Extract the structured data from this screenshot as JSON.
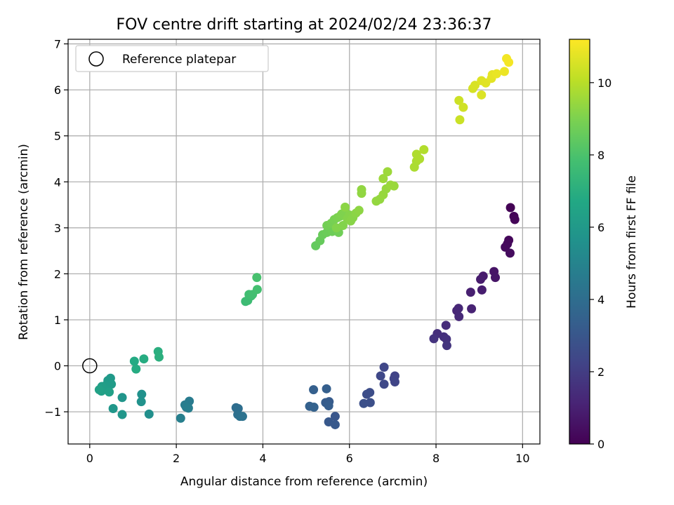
{
  "chart_data": {
    "type": "scatter",
    "title": "FOV centre drift starting at 2024/02/24 23:36:37",
    "xlabel": "Angular distance from reference (arcmin)",
    "ylabel": "Rotation from reference (arcmin)",
    "xlim": [
      -0.5,
      10.4
    ],
    "ylim": [
      -1.7,
      7.1
    ],
    "xticks": [
      0,
      2,
      4,
      6,
      8,
      10
    ],
    "xtick_labels": [
      "0",
      "2",
      "4",
      "6",
      "8",
      "10"
    ],
    "yticks": [
      -1,
      0,
      1,
      2,
      3,
      4,
      5,
      6,
      7
    ],
    "ytick_labels": [
      "−1",
      "0",
      "1",
      "2",
      "3",
      "4",
      "5",
      "6",
      "7"
    ],
    "grid": true,
    "legend": {
      "placement": "top-left",
      "entries": [
        "Reference platepar"
      ]
    },
    "reference_point": {
      "x": 0,
      "y": 0,
      "marker": "open-circle"
    },
    "colorbar": {
      "label": "Hours from first FF file",
      "colormap": "viridis",
      "range": [
        0,
        11.2
      ],
      "ticks": [
        0,
        2,
        4,
        6,
        8,
        10
      ],
      "tick_labels": [
        "0",
        "2",
        "4",
        "6",
        "8",
        "10"
      ]
    },
    "series": [
      {
        "points": [
          [
            9.72,
            3.44,
            0.05
          ],
          [
            9.8,
            3.25,
            0.1
          ],
          [
            9.82,
            3.18,
            0.15
          ],
          [
            9.68,
            2.73,
            0.2
          ],
          [
            9.65,
            2.65,
            0.25
          ],
          [
            9.6,
            2.58,
            0.3
          ],
          [
            9.71,
            2.45,
            0.35
          ],
          [
            9.34,
            2.05,
            0.6
          ],
          [
            9.37,
            1.92,
            0.65
          ],
          [
            9.09,
            1.95,
            0.8
          ],
          [
            9.03,
            1.88,
            0.85
          ],
          [
            9.06,
            1.65,
            0.9
          ],
          [
            8.8,
            1.6,
            1.0
          ],
          [
            8.82,
            1.24,
            1.1
          ],
          [
            8.48,
            1.2,
            1.2
          ],
          [
            8.52,
            1.25,
            1.25
          ],
          [
            8.53,
            1.07,
            1.3
          ],
          [
            8.23,
            0.88,
            1.4
          ],
          [
            8.03,
            0.7,
            1.5
          ],
          [
            8.18,
            0.63,
            1.55
          ],
          [
            8.24,
            0.58,
            1.6
          ],
          [
            7.95,
            0.59,
            1.65
          ],
          [
            8.25,
            0.44,
            1.7
          ],
          [
            7.05,
            -0.22,
            2.2
          ],
          [
            7.03,
            -0.28,
            2.25
          ],
          [
            7.05,
            -0.35,
            2.3
          ],
          [
            6.8,
            -0.03,
            2.35
          ],
          [
            6.72,
            -0.22,
            2.4
          ],
          [
            6.8,
            -0.4,
            2.45
          ],
          [
            6.47,
            -0.58,
            2.6
          ],
          [
            6.4,
            -0.62,
            2.65
          ],
          [
            6.48,
            -0.8,
            2.7
          ],
          [
            6.33,
            -0.82,
            2.75
          ],
          [
            5.67,
            -1.1,
            3.0
          ],
          [
            5.52,
            -1.22,
            3.05
          ],
          [
            5.67,
            -1.28,
            3.1
          ],
          [
            5.53,
            -0.78,
            3.2
          ],
          [
            5.45,
            -0.8,
            3.25
          ],
          [
            5.52,
            -0.87,
            3.3
          ],
          [
            5.47,
            -0.5,
            3.35
          ],
          [
            5.17,
            -0.52,
            3.4
          ],
          [
            5.08,
            -0.88,
            3.45
          ],
          [
            5.18,
            -0.9,
            3.5
          ],
          [
            3.38,
            -0.91,
            4.0
          ],
          [
            3.43,
            -0.93,
            4.05
          ],
          [
            3.42,
            -1.06,
            4.1
          ],
          [
            3.47,
            -1.1,
            4.15
          ],
          [
            3.53,
            -1.1,
            4.2
          ],
          [
            2.3,
            -0.77,
            4.6
          ],
          [
            2.2,
            -0.85,
            4.65
          ],
          [
            2.23,
            -0.9,
            4.7
          ],
          [
            2.28,
            -0.92,
            4.75
          ],
          [
            2.1,
            -1.14,
            4.8
          ],
          [
            1.37,
            -1.05,
            5.5
          ],
          [
            1.2,
            -0.62,
            5.6
          ],
          [
            1.19,
            -0.78,
            5.65
          ],
          [
            0.75,
            -0.69,
            5.8
          ],
          [
            0.75,
            -1.06,
            5.85
          ],
          [
            0.54,
            -0.93,
            5.9
          ],
          [
            0.48,
            -0.27,
            6.0
          ],
          [
            0.42,
            -0.32,
            6.05
          ],
          [
            0.5,
            -0.4,
            6.1
          ],
          [
            0.38,
            -0.42,
            6.15
          ],
          [
            0.35,
            -0.5,
            6.2
          ],
          [
            0.28,
            -0.45,
            6.25
          ],
          [
            0.27,
            -0.55,
            6.3
          ],
          [
            0.45,
            -0.57,
            6.35
          ],
          [
            0.22,
            -0.52,
            6.4
          ],
          [
            1.03,
            0.1,
            6.8
          ],
          [
            1.07,
            -0.07,
            6.85
          ],
          [
            1.25,
            0.15,
            6.9
          ],
          [
            1.58,
            0.31,
            7.0
          ],
          [
            1.6,
            0.19,
            7.05
          ],
          [
            3.6,
            1.4,
            7.6
          ],
          [
            3.65,
            1.42,
            7.65
          ],
          [
            3.73,
            1.52,
            7.7
          ],
          [
            3.68,
            1.55,
            7.75
          ],
          [
            3.76,
            1.55,
            7.8
          ],
          [
            3.87,
            1.66,
            7.85
          ],
          [
            3.86,
            1.92,
            7.9
          ],
          [
            5.22,
            2.61,
            8.5
          ],
          [
            5.32,
            2.72,
            8.55
          ],
          [
            5.38,
            2.85,
            8.6
          ],
          [
            5.48,
            2.9,
            8.65
          ],
          [
            5.6,
            2.92,
            8.7
          ],
          [
            5.75,
            2.9,
            8.75
          ],
          [
            5.48,
            3.05,
            8.8
          ],
          [
            5.58,
            3.1,
            8.85
          ],
          [
            5.65,
            3.18,
            8.9
          ],
          [
            5.72,
            3.22,
            8.95
          ],
          [
            5.78,
            3.25,
            9.0
          ],
          [
            5.82,
            3.3,
            9.05
          ],
          [
            5.9,
            3.35,
            9.05
          ],
          [
            5.7,
            3.0,
            9.1
          ],
          [
            5.85,
            3.05,
            9.1
          ],
          [
            5.95,
            3.2,
            9.15
          ],
          [
            6.0,
            3.28,
            9.15
          ],
          [
            6.03,
            3.15,
            9.2
          ],
          [
            6.08,
            3.22,
            9.2
          ],
          [
            6.15,
            3.32,
            9.25
          ],
          [
            5.9,
            3.45,
            9.25
          ],
          [
            6.22,
            3.38,
            9.3
          ],
          [
            6.28,
            3.75,
            9.35
          ],
          [
            6.28,
            3.83,
            9.35
          ],
          [
            6.62,
            3.58,
            9.4
          ],
          [
            6.7,
            3.62,
            9.4
          ],
          [
            6.78,
            3.72,
            9.45
          ],
          [
            6.85,
            3.85,
            9.45
          ],
          [
            6.95,
            3.93,
            9.5
          ],
          [
            7.03,
            3.91,
            9.5
          ],
          [
            6.78,
            4.07,
            9.55
          ],
          [
            6.88,
            4.22,
            9.55
          ],
          [
            7.5,
            4.32,
            9.8
          ],
          [
            7.55,
            4.45,
            9.8
          ],
          [
            7.62,
            4.5,
            9.85
          ],
          [
            7.55,
            4.6,
            9.85
          ],
          [
            7.72,
            4.7,
            9.9
          ],
          [
            8.55,
            5.35,
            10.3
          ],
          [
            8.53,
            5.77,
            10.35
          ],
          [
            8.63,
            5.62,
            10.4
          ],
          [
            8.85,
            6.03,
            10.5
          ],
          [
            8.9,
            6.1,
            10.55
          ],
          [
            9.05,
            5.89,
            10.6
          ],
          [
            9.05,
            6.2,
            10.65
          ],
          [
            9.15,
            6.15,
            10.7
          ],
          [
            9.28,
            6.25,
            10.75
          ],
          [
            9.3,
            6.33,
            10.8
          ],
          [
            9.4,
            6.35,
            10.85
          ],
          [
            9.58,
            6.4,
            10.9
          ],
          [
            9.63,
            6.68,
            11.0
          ],
          [
            9.68,
            6.6,
            11.05
          ]
        ]
      }
    ]
  }
}
